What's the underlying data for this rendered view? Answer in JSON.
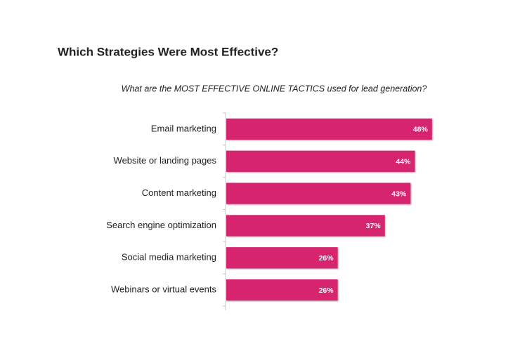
{
  "chart_data": {
    "type": "hbar",
    "title": "Which Strategies Were Most Effective?",
    "subtitle": "What are the MOST EFFECTIVE ONLINE TACTICS used for lead generation?",
    "categories": [
      "Email marketing",
      "Website or landing pages",
      "Content marketing",
      "Search engine optimization",
      "Social media marketing",
      "Webinars or virtual events"
    ],
    "values": [
      48,
      44,
      43,
      37,
      26,
      26
    ],
    "value_labels": [
      "48%",
      "44%",
      "43%",
      "37%",
      "26%",
      "26%"
    ],
    "color": "#d6246e",
    "xlim": [
      0,
      60
    ]
  }
}
